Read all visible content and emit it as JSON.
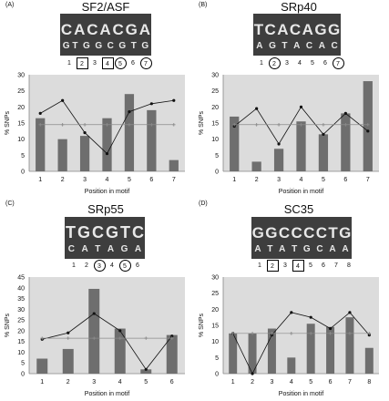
{
  "chart_data": [
    {
      "panel_label": "(A)",
      "title": "SF2/ASF",
      "logo_top": [
        "C",
        "A",
        "C",
        "A",
        "C",
        "G",
        "A"
      ],
      "logo_bottom": [
        "G T",
        "G",
        "G",
        "C",
        "G",
        "T",
        "G"
      ],
      "positions": [
        "1",
        "2",
        "3",
        "4",
        "5",
        "6",
        "7"
      ],
      "marks": [
        "none",
        "box",
        "none",
        "box",
        "circle",
        "none",
        "circle"
      ],
      "type": "bar",
      "categories": [
        "1",
        "2",
        "3",
        "4",
        "5",
        "6",
        "7"
      ],
      "values": [
        16.5,
        10,
        11,
        16.5,
        24,
        19,
        3.5
      ],
      "series": [
        {
          "values": [
            18,
            22,
            12,
            5.5,
            18.5,
            21,
            22
          ]
        },
        {
          "values": [
            14.5,
            14.5,
            14.5,
            14.5,
            14.5,
            14.5,
            14.5
          ]
        }
      ],
      "xlabel": "Position in motif",
      "ylabel": "% SNPs",
      "ylim": [
        0,
        30
      ],
      "yticks": [
        "0",
        "5",
        "10",
        "15",
        "20",
        "25",
        "30"
      ]
    },
    {
      "panel_label": "(B)",
      "title": "SRp40",
      "logo_top": [
        "T",
        "C",
        "A",
        "C",
        "A",
        "G",
        "G"
      ],
      "logo_bottom": [
        "A",
        "G",
        "T",
        "A",
        "C",
        "A",
        "C"
      ],
      "positions": [
        "1",
        "2",
        "3",
        "4",
        "5",
        "6",
        "7"
      ],
      "marks": [
        "none",
        "circle",
        "none",
        "none",
        "none",
        "none",
        "circle"
      ],
      "type": "bar",
      "categories": [
        "1",
        "2",
        "3",
        "4",
        "5",
        "6",
        "7"
      ],
      "values": [
        17,
        3,
        7,
        15.5,
        11.5,
        18,
        28
      ],
      "series": [
        {
          "values": [
            14,
            19.5,
            8.5,
            20,
            11.5,
            18,
            12.5
          ]
        },
        {
          "values": [
            14.5,
            14.5,
            14.5,
            14.5,
            14.5,
            14.5,
            14.5
          ]
        }
      ],
      "xlabel": "Position in motif",
      "ylabel": "% SNPs",
      "ylim": [
        0,
        30
      ],
      "yticks": [
        "0",
        "5",
        "10",
        "15",
        "20",
        "25",
        "30"
      ]
    },
    {
      "panel_label": "(C)",
      "title": "SRp55",
      "logo_top": [
        "T",
        "G",
        "C",
        "G",
        "T",
        "C"
      ],
      "logo_bottom": [
        "C",
        "A",
        "T",
        "A",
        "G",
        "A"
      ],
      "positions": [
        "1",
        "2",
        "3",
        "4",
        "5",
        "6"
      ],
      "marks": [
        "none",
        "none",
        "circle",
        "none",
        "circle",
        "none"
      ],
      "type": "bar",
      "categories": [
        "1",
        "2",
        "3",
        "4",
        "5",
        "6"
      ],
      "values": [
        7,
        11.5,
        39.5,
        21,
        2,
        18
      ],
      "series": [
        {
          "values": [
            16,
            19,
            28,
            20,
            2,
            17.5
          ]
        },
        {
          "values": [
            16.5,
            16.5,
            16.5,
            16.5,
            16.5,
            16.5
          ]
        }
      ],
      "xlabel": "Position in motif",
      "ylabel": "% SNPs",
      "ylim": [
        0,
        45
      ],
      "yticks": [
        "0",
        "5",
        "10",
        "15",
        "20",
        "25",
        "30",
        "35",
        "40",
        "45"
      ]
    },
    {
      "panel_label": "(D)",
      "title": "SC35",
      "logo_top": [
        "G",
        "G",
        "C",
        "C",
        "C",
        "C",
        "T",
        "G"
      ],
      "logo_bottom": [
        "A",
        "T",
        "A",
        "T",
        "G",
        "C",
        "A",
        "A"
      ],
      "positions": [
        "1",
        "2",
        "3",
        "4",
        "5",
        "6",
        "7",
        "8"
      ],
      "marks": [
        "none",
        "box",
        "none",
        "box",
        "none",
        "none",
        "none",
        "none"
      ],
      "type": "bar",
      "categories": [
        "1",
        "2",
        "3",
        "4",
        "5",
        "6",
        "7",
        "8"
      ],
      "values": [
        12.5,
        12.5,
        14,
        5,
        15.5,
        14.5,
        17.5,
        8
      ],
      "series": [
        {
          "values": [
            12.5,
            0,
            12,
            19,
            17.5,
            14,
            19,
            12
          ]
        },
        {
          "values": [
            12.5,
            12.5,
            12.5,
            12.5,
            12.5,
            12.5,
            12.5,
            12.5
          ]
        }
      ],
      "xlabel": "Position in motif",
      "ylabel": "% SNPs",
      "ylim": [
        0,
        30
      ],
      "yticks": [
        "0",
        "5",
        "10",
        "15",
        "20",
        "25",
        "30"
      ]
    }
  ]
}
